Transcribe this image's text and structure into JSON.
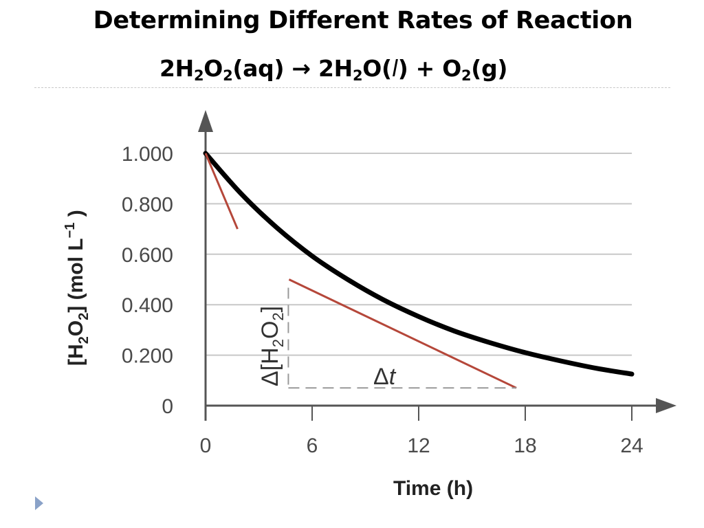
{
  "slide": {
    "title": "Determining Different Rates of Reaction",
    "equation": {
      "left_coef": "2H",
      "left_sub1": "2",
      "left_o": "O",
      "left_sub2": "2",
      "left_state": "(aq)",
      "arrow": " → ",
      "right_coef": "2H",
      "right_sub1": "2",
      "right_o": "O(",
      "right_state_l": "l",
      "right_close": ")",
      "plus": " + O",
      "o2_sub": "2",
      "o2_state": "(g)"
    }
  },
  "chart_data": {
    "type": "line",
    "title": "",
    "xlabel": "Time (h)",
    "ylabel_parts": {
      "open": "[H",
      "sub": "2",
      "mid": "O",
      "sub2": "2",
      "close": "] (mol L",
      "sup": "−1",
      "end": " )"
    },
    "xlim": [
      0,
      24
    ],
    "ylim": [
      0,
      1.0
    ],
    "x_ticks": [
      "0",
      "6",
      "12",
      "18",
      "24"
    ],
    "y_ticks": [
      "0",
      "0.200",
      "0.400",
      "0.600",
      "0.800",
      "1.000"
    ],
    "y_tick_values": [
      0,
      0.2,
      0.4,
      0.6,
      0.8,
      1.0
    ],
    "x_tick_values": [
      0,
      6,
      12,
      18,
      24
    ],
    "grid": "horizontal",
    "series": [
      {
        "x": [
          0,
          2,
          4,
          6,
          8,
          10,
          12,
          14,
          16,
          18,
          20,
          22,
          24
        ],
        "y": [
          1.0,
          0.84,
          0.706,
          0.593,
          0.5,
          0.42,
          0.353,
          0.296,
          0.25,
          0.21,
          0.177,
          0.148,
          0.125
        ],
        "color": "#000000"
      }
    ],
    "tangents": [
      {
        "x": [
          0,
          1.8
        ],
        "y": [
          1.0,
          0.7
        ],
        "color": "#b5473a"
      },
      {
        "x": [
          4.7,
          17.5
        ],
        "y": [
          0.5,
          0.07
        ],
        "color": "#b5473a"
      }
    ],
    "delta_annotation": {
      "dy_label_delta": "Δ",
      "dy_label_open": "[H",
      "dy_sub1": "2",
      "dy_mid": "O",
      "dy_sub2": "2",
      "dy_close": "]",
      "dt_label_delta": "Δ",
      "dt_label_t": "t"
    },
    "axis_color": "#555555",
    "grid_color": "#c8c8c8"
  }
}
